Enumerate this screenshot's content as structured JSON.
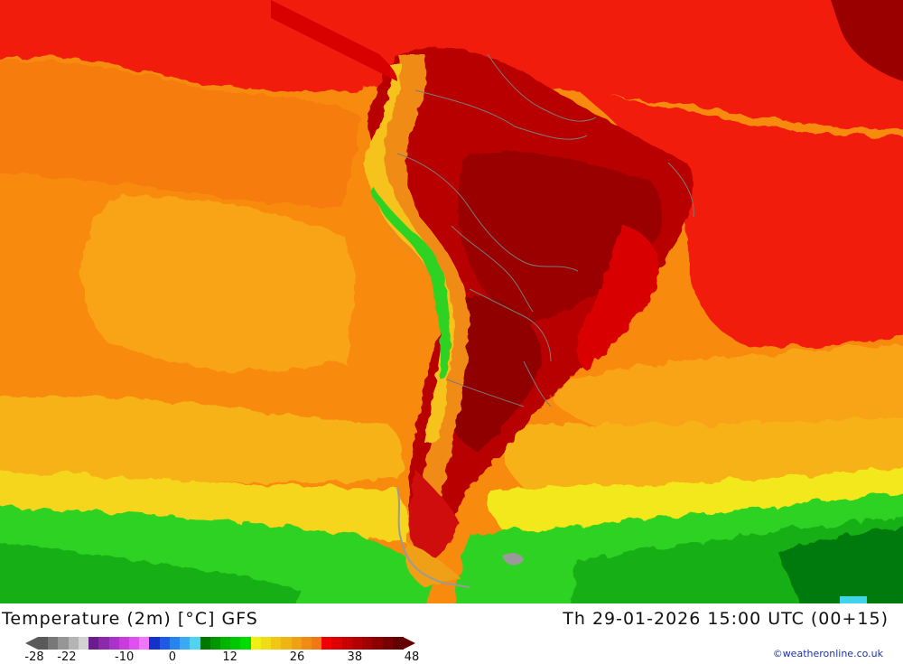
{
  "map": {
    "region": "South America",
    "field": "2 m temperature"
  },
  "footer": {
    "title": "Temperature (2m) [°C] GFS",
    "valid": "Th 29-01-2026 15:00 UTC (00+15)",
    "credit": "©weatheronline.co.uk"
  },
  "colorbar": {
    "min": -28,
    "max": 48,
    "tick_labels": [
      "-28",
      "-22",
      "-10",
      "0",
      "12",
      "26",
      "38",
      "48"
    ],
    "tick_values": [
      -28,
      -22,
      -10,
      0,
      12,
      26,
      38,
      48
    ],
    "colors": [
      "#5a5a5a",
      "#787878",
      "#969696",
      "#b4b4b4",
      "#d2d2d2",
      "#6a1c8c",
      "#8c28aa",
      "#aa32c8",
      "#c83cdc",
      "#e050f0",
      "#f078f8",
      "#1432c8",
      "#1e5ae6",
      "#2882f0",
      "#3caaf0",
      "#50d2f0",
      "#007800",
      "#009600",
      "#00b400",
      "#00c800",
      "#00dc00",
      "#f0f014",
      "#f0dc14",
      "#f0c814",
      "#f0b414",
      "#f0a014",
      "#f08c14",
      "#f07814",
      "#f00000",
      "#dc0000",
      "#c80000",
      "#b40000",
      "#a00000",
      "#8c0000",
      "#780000",
      "#640000"
    ]
  }
}
